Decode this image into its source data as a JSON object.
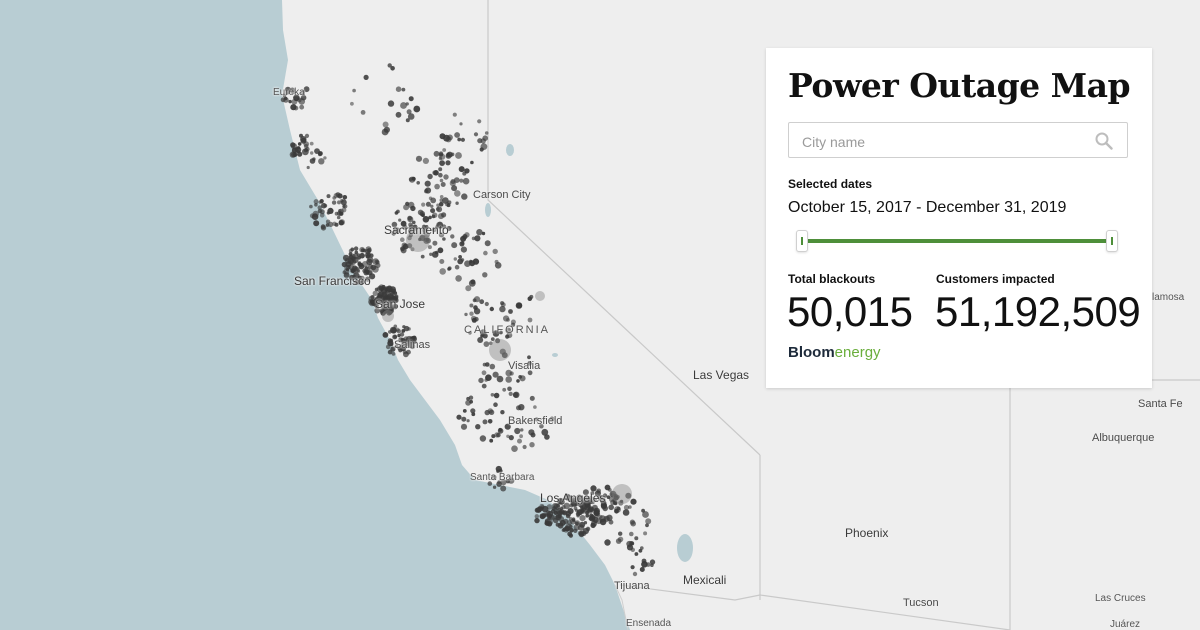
{
  "panel": {
    "title": "Power Outage Map",
    "search": {
      "placeholder": "City name",
      "value": "",
      "icon": "search-icon"
    },
    "dates_label": "Selected dates",
    "dates_value": "October 15, 2017 - December 31, 2019",
    "slider": {
      "start_fraction": 0,
      "end_fraction": 1,
      "color": "#4e8f3a"
    },
    "stats": {
      "blackouts_label": "Total blackouts",
      "blackouts_value": "50,015",
      "customers_label": "Customers impacted",
      "customers_value": "51,192,509"
    },
    "logo": {
      "part1": "Bloom",
      "part2": "energy"
    }
  },
  "map": {
    "colors": {
      "ocean": "#b8cdd3",
      "land": "#eeeeee",
      "dots": "#3a3a3a"
    },
    "labels": {
      "eureka": "Eureka",
      "carson_city": "Carson City",
      "sacramento": "Sacramento",
      "san_francisco": "San Francisco",
      "san_jose": "San Jose",
      "california": "CALIFORNIA",
      "salinas": "Salinas",
      "visalia": "Visalia",
      "las_vegas": "Las Vegas",
      "bakersfield": "Bakersfield",
      "santa_barbara": "Santa Barbara",
      "los_angeles": "Los Angeles",
      "phoenix": "Phoenix",
      "tijuana": "Tijuana",
      "mexicali": "Mexicali",
      "ensenada": "Ensenada",
      "tucson": "Tucson",
      "santa_fe": "Santa Fe",
      "albuquerque": "Albuquerque",
      "las_cruces": "Las Cruces",
      "alamosa": "lamosa",
      "juarez": "Juárez"
    }
  }
}
